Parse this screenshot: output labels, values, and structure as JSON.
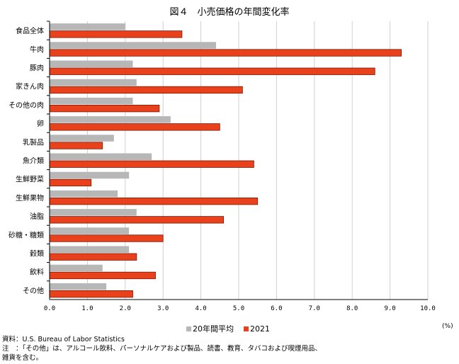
{
  "title": "図４　小売価格の年間変化率",
  "unit": "(%)",
  "colors": {
    "avg": "#b7b7b7",
    "y2021": "#e8411c",
    "bar_border": "#7a1a06",
    "grid": "#d0d0d0"
  },
  "chart_data": {
    "type": "bar",
    "orientation": "horizontal",
    "categories": [
      "食品全体",
      "牛肉",
      "豚肉",
      "家きん肉",
      "その他の肉",
      "卵",
      "乳製品",
      "魚介類",
      "生鮮野菜",
      "生鮮果物",
      "油脂",
      "砂糖・糖類",
      "穀類",
      "飲料",
      "その他"
    ],
    "series": [
      {
        "name": "20年間平均",
        "values": [
          2.0,
          4.4,
          2.2,
          2.3,
          2.2,
          3.2,
          1.7,
          2.7,
          2.1,
          1.8,
          2.3,
          2.1,
          2.1,
          1.4,
          1.5
        ]
      },
      {
        "name": "2021",
        "values": [
          3.5,
          9.3,
          8.6,
          5.1,
          2.9,
          4.5,
          1.4,
          5.4,
          1.1,
          5.5,
          4.6,
          3.0,
          2.3,
          2.8,
          2.2
        ]
      }
    ],
    "xlim": [
      0,
      10
    ],
    "ticks": [
      "0.0",
      "1.0",
      "2.0",
      "3.0",
      "4.0",
      "5.0",
      "6.0",
      "7.0",
      "8.0",
      "9.0",
      "10.0"
    ],
    "grid": true,
    "legend": "bottom"
  },
  "notes": [
    "資料：U.S. Bureau of Labor Statistics",
    "注　：「その他」は、アルコール飲料、パーソナルケアおよび製品、読書、教育、タバコおよび喫煙用品、",
    "雑貨を含む。"
  ]
}
